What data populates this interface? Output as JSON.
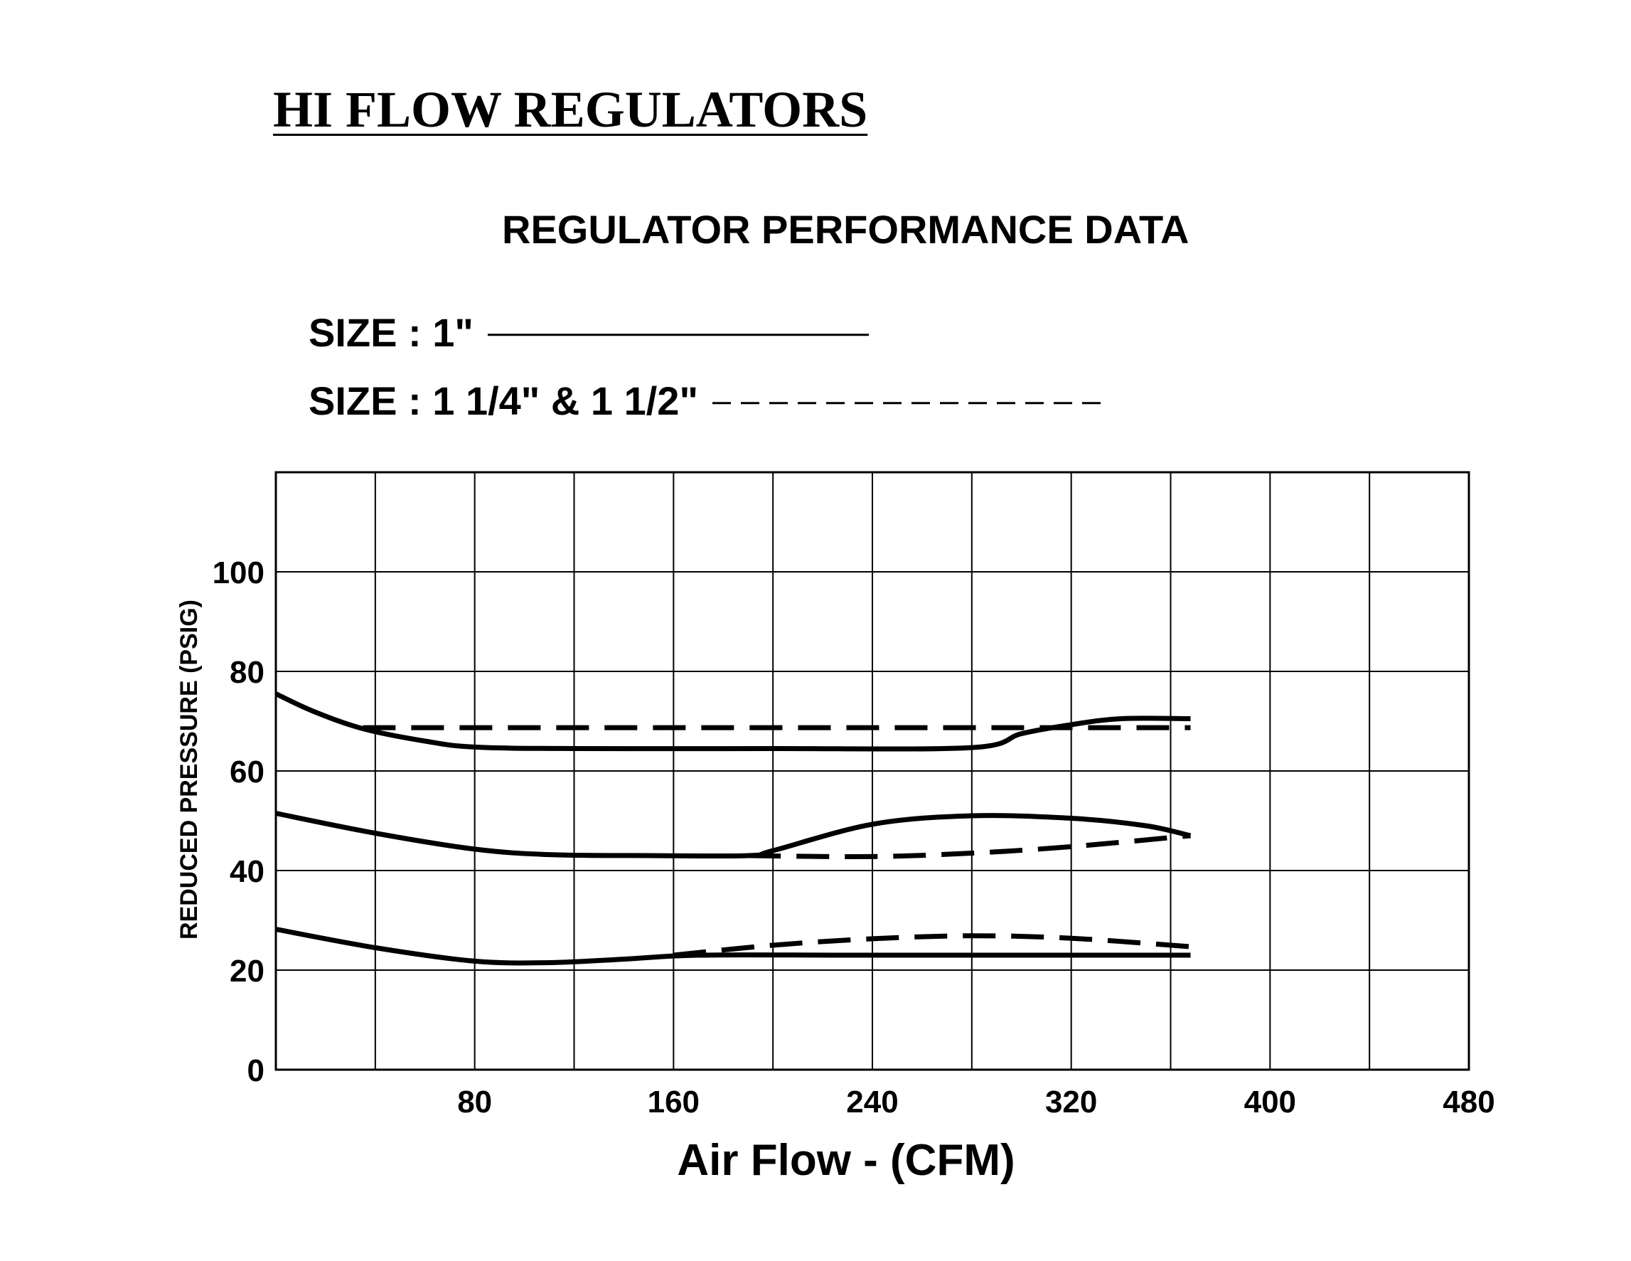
{
  "header": {
    "title": "HI FLOW REGULATORS"
  },
  "chart_data": {
    "type": "line",
    "title": "REGULATOR PERFORMANCE DATA",
    "xlabel": "Air Flow - (CFM)",
    "ylabel": "REDUCED PRESSURE  (PSIG)",
    "xlim": [
      0,
      480
    ],
    "ylim": [
      0,
      120
    ],
    "grid": true,
    "x_gridlines": [
      0,
      40,
      80,
      120,
      160,
      200,
      240,
      280,
      320,
      360,
      400,
      440,
      480
    ],
    "y_gridlines": [
      0,
      20,
      40,
      60,
      80,
      100,
      120
    ],
    "x_tick_labels": [
      {
        "value": 80,
        "label": "80"
      },
      {
        "value": 160,
        "label": "160"
      },
      {
        "value": 240,
        "label": "240"
      },
      {
        "value": 320,
        "label": "320"
      },
      {
        "value": 400,
        "label": "400"
      },
      {
        "value": 480,
        "label": "480"
      }
    ],
    "y_tick_labels": [
      {
        "value": 0,
        "label": "0"
      },
      {
        "value": 20,
        "label": "20"
      },
      {
        "value": 40,
        "label": "40"
      },
      {
        "value": 60,
        "label": "60"
      },
      {
        "value": 80,
        "label": "80"
      },
      {
        "value": 100,
        "label": "100"
      }
    ],
    "legend": [
      {
        "label": "SIZE : 1\"",
        "style": "solid"
      },
      {
        "label": "SIZE : 1 1/4\" & 1 1/2\"",
        "style": "dashed"
      }
    ],
    "series": [
      {
        "legend_index": 0,
        "style": "solid",
        "points": [
          [
            0,
            75.5
          ],
          [
            15,
            72
          ],
          [
            35,
            68.5
          ],
          [
            60,
            66
          ],
          [
            80,
            64.8
          ],
          [
            120,
            64.5
          ],
          [
            200,
            64.5
          ],
          [
            280,
            64.7
          ],
          [
            300,
            67.5
          ],
          [
            320,
            69.3
          ],
          [
            340,
            70.5
          ],
          [
            368,
            70.5
          ]
        ]
      },
      {
        "legend_index": 1,
        "style": "dashed",
        "points": [
          [
            35,
            68.7
          ],
          [
            368,
            68.7
          ]
        ]
      },
      {
        "legend_index": 0,
        "style": "solid",
        "points": [
          [
            0,
            51.5
          ],
          [
            40,
            47.5
          ],
          [
            80,
            44.3
          ],
          [
            110,
            43.2
          ],
          [
            150,
            43
          ],
          [
            190,
            43
          ],
          [
            200,
            44
          ],
          [
            240,
            49.3
          ],
          [
            280,
            51
          ],
          [
            320,
            50.5
          ],
          [
            350,
            49
          ],
          [
            368,
            47
          ]
        ]
      },
      {
        "legend_index": 1,
        "style": "dashed",
        "points": [
          [
            190,
            43
          ],
          [
            240,
            42.8
          ],
          [
            280,
            43.5
          ],
          [
            320,
            44.8
          ],
          [
            368,
            47
          ]
        ]
      },
      {
        "legend_index": 0,
        "style": "solid",
        "points": [
          [
            0,
            28.2
          ],
          [
            40,
            24.5
          ],
          [
            80,
            21.8
          ],
          [
            110,
            21.5
          ],
          [
            140,
            22.2
          ],
          [
            170,
            23
          ],
          [
            230,
            23
          ],
          [
            300,
            23
          ],
          [
            368,
            23
          ]
        ]
      },
      {
        "legend_index": 1,
        "style": "dashed",
        "points": [
          [
            160,
            23
          ],
          [
            200,
            25
          ],
          [
            240,
            26.3
          ],
          [
            280,
            26.9
          ],
          [
            320,
            26.4
          ],
          [
            368,
            24.7
          ]
        ]
      }
    ]
  }
}
